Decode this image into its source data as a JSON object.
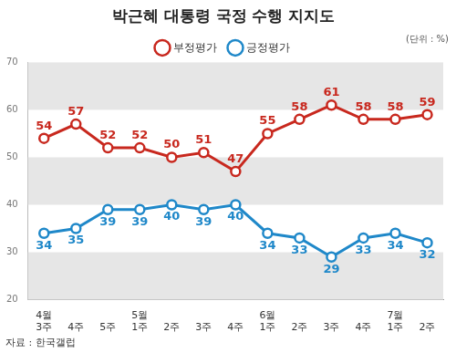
{
  "chart_data": {
    "type": "line",
    "title": "박근혜 대통령 국정 수행 지지도",
    "unit_note": "(단위 : %)",
    "source": "자료 : 한국갤럽",
    "categories": [
      "4월\n3주",
      "4주",
      "5주",
      "5월\n1주",
      "2주",
      "3주",
      "4주",
      "6월\n1주",
      "2주",
      "3주",
      "4주",
      "7월\n1주",
      "2주"
    ],
    "series": [
      {
        "name": "부정평가",
        "color": "#c8281e",
        "marker": "circle",
        "values": [
          54,
          57,
          52,
          52,
          50,
          51,
          47,
          55,
          58,
          61,
          58,
          58,
          59
        ]
      },
      {
        "name": "긍정평가",
        "color": "#1f88c9",
        "marker": "circle",
        "values": [
          34,
          35,
          39,
          39,
          40,
          39,
          40,
          34,
          33,
          29,
          33,
          34,
          32
        ]
      }
    ],
    "ylim": [
      20,
      70
    ],
    "yticks": [
      20,
      30,
      40,
      50,
      60,
      70
    ],
    "grid": true,
    "legend": "top",
    "data_labels": true
  }
}
